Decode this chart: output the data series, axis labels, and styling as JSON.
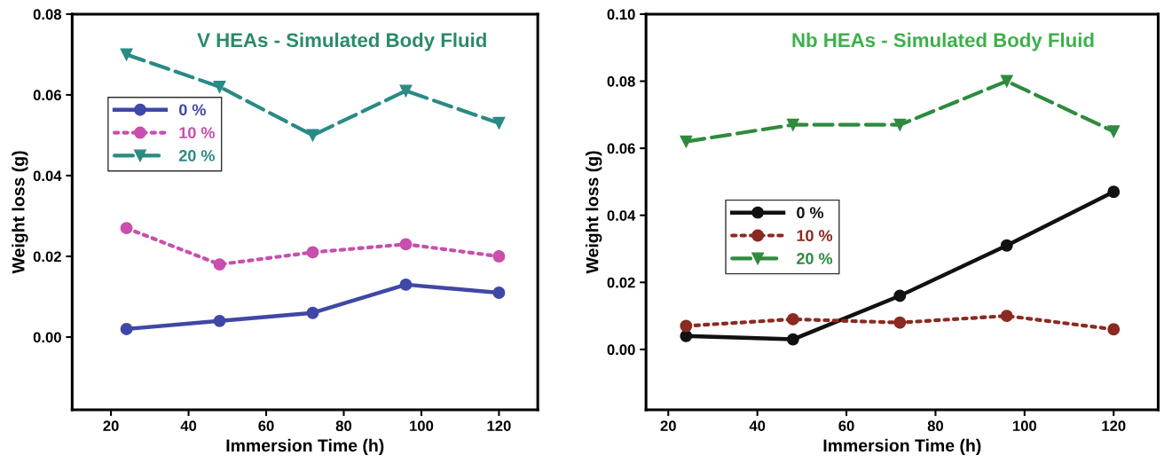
{
  "chart_data": [
    {
      "type": "line",
      "title": "V HEAs - Simulated Body Fluid",
      "xlabel": "Immersion Time (h)",
      "ylabel": "Weight loss (g)",
      "x": [
        24,
        48,
        72,
        96,
        120
      ],
      "xlim": [
        10,
        130
      ],
      "xticks": [
        20,
        40,
        60,
        80,
        100,
        120
      ],
      "ylim": [
        -0.018,
        0.08
      ],
      "yticks": [
        {
          "value": 0,
          "label": "0.00"
        },
        {
          "value": 0.02,
          "label": "0.02"
        },
        {
          "value": 0.04,
          "label": "0.04"
        },
        {
          "value": 0.06,
          "label": "0.06"
        },
        {
          "value": 0.08,
          "label": "0.08"
        }
      ],
      "grid": false,
      "legend": "upper left",
      "series": [
        {
          "name": "0 %",
          "color": "#3f48a6",
          "values": [
            0.002,
            0.004,
            0.006,
            0.013,
            0.011
          ],
          "marker": "circle",
          "line_style": "solid"
        },
        {
          "name": "10 %",
          "color": "#c84fae",
          "values": [
            0.027,
            0.018,
            0.021,
            0.023,
            0.02
          ],
          "marker": "circle",
          "line_style": "dotted"
        },
        {
          "name": "20 %",
          "color": "#2a8a84",
          "values": [
            0.07,
            0.062,
            0.05,
            0.061,
            0.053
          ],
          "marker": "triangle",
          "line_style": "dashed"
        }
      ]
    },
    {
      "type": "line",
      "title": "Nb HEAs - Simulated Body Fluid",
      "xlabel": "Immersion Time (h)",
      "ylabel": "Weight loss (g)",
      "x": [
        24,
        48,
        72,
        96,
        120
      ],
      "xlim": [
        15,
        130
      ],
      "xticks": [
        20,
        40,
        60,
        80,
        100,
        120
      ],
      "ylim": [
        -0.018,
        0.1
      ],
      "yticks": [
        {
          "value": 0,
          "label": "0.00"
        },
        {
          "value": 0.02,
          "label": "0.02"
        },
        {
          "value": 0.04,
          "label": "0.04"
        },
        {
          "value": 0.06,
          "label": "0.06"
        },
        {
          "value": 0.08,
          "label": "0.08"
        },
        {
          "value": 0.1,
          "label": "0.10"
        }
      ],
      "grid": false,
      "legend": "center left",
      "series": [
        {
          "name": "0 %",
          "color": "#111111",
          "values": [
            0.004,
            0.003,
            0.016,
            0.031,
            0.047
          ],
          "marker": "circle",
          "line_style": "solid"
        },
        {
          "name": "10 %",
          "color": "#8b2a22",
          "values": [
            0.007,
            0.009,
            0.008,
            0.01,
            0.006
          ],
          "marker": "circle",
          "line_style": "dotted"
        },
        {
          "name": "20 %",
          "color": "#2e8b3e",
          "values": [
            0.062,
            0.067,
            0.067,
            0.08,
            0.065
          ],
          "marker": "triangle",
          "line_style": "dashed"
        }
      ]
    }
  ]
}
